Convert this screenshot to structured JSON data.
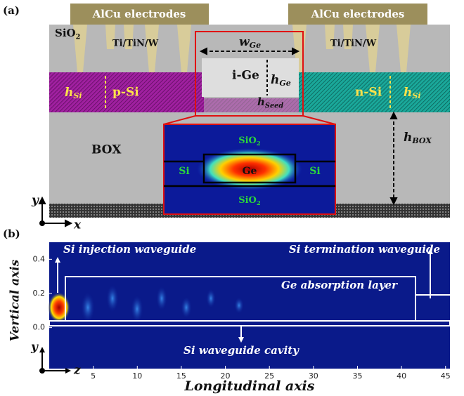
{
  "panel_a": {
    "tag": "(a)",
    "electrode_left": "AlCu electrodes",
    "electrode_right": "AlCu electrodes",
    "sio2_top": {
      "main": "SiO",
      "sub": "2"
    },
    "via_left": "Ti/TiN/W",
    "via_right": "Ti/TiN/W",
    "w_ge": {
      "main": "w",
      "sub": "Ge"
    },
    "i_ge": "i-Ge",
    "h_ge": {
      "main": "h",
      "sub": "Ge"
    },
    "h_seed": {
      "main": "h",
      "sub": "Seed"
    },
    "h_si_left": {
      "main": "h",
      "sub": "Si"
    },
    "p_si": "p-Si",
    "n_si": "n-Si",
    "h_si_right": {
      "main": "h",
      "sub": "Si"
    },
    "box": "BOX",
    "h_box": {
      "main": "h",
      "sub": "BOX"
    },
    "inset": {
      "sio2_top": {
        "main": "SiO",
        "sub": "2"
      },
      "si_left": "Si",
      "ge": "Ge",
      "si_right": "Si",
      "sio2_bottom": {
        "main": "SiO",
        "sub": "2"
      }
    },
    "axis_y": "y",
    "axis_x": "x"
  },
  "panel_b": {
    "tag": "(b)",
    "xlabel": "Longitudinal axis",
    "ylabel": "Vertical axis",
    "axis_y": "y",
    "axis_z": "z",
    "xlim": [
      0,
      45.5
    ],
    "ylim": [
      -0.24,
      0.5
    ],
    "xticks": [
      5,
      10,
      15,
      20,
      25,
      30,
      35,
      40,
      45
    ],
    "yticks": [
      {
        "value": 0,
        "label": "0.0"
      },
      0.2,
      0.4
    ],
    "injection": "Si injection waveguide",
    "termination": "Si termination waveguide",
    "absorption": "Ge absorption layer",
    "cavity": "Si waveguide cavity"
  }
}
